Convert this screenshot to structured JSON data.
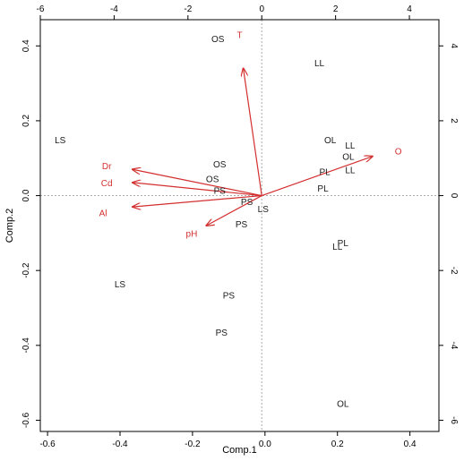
{
  "chart_data": {
    "type": "scatter",
    "subtype": "biplot",
    "title": "",
    "xlabel": "Comp.1",
    "ylabel": "Comp.2",
    "xlim": [
      -0.62,
      0.48
    ],
    "ylim": [
      -0.63,
      0.47
    ],
    "top_xlim": [
      -6,
      4.8
    ],
    "right_ylim": [
      -6.3,
      4.7
    ],
    "bottom_ticks": [
      -0.6,
      -0.4,
      -0.2,
      0.0,
      0.2,
      0.4
    ],
    "bottom_tick_labels": [
      "-0.6",
      "-0.4",
      "-0.2",
      "0.0",
      "0.2",
      "0.4"
    ],
    "left_ticks": [
      -0.6,
      -0.4,
      -0.2,
      0.0,
      0.2,
      0.4
    ],
    "left_tick_labels": [
      "-0.6",
      "-0.4",
      "-0.2",
      "0.0",
      "0.2",
      "0.4"
    ],
    "top_ticks": [
      -6,
      -4,
      -2,
      0,
      2,
      4
    ],
    "top_tick_labels": [
      "-6",
      "-4",
      "-2",
      "0",
      "2",
      "4"
    ],
    "right_ticks": [
      -6,
      -4,
      -2,
      0,
      2,
      4
    ],
    "right_tick_labels": [
      "-6",
      "-4",
      "-2",
      "0",
      "2",
      "4"
    ],
    "grid": false,
    "zero_lines": true,
    "colors": {
      "points": "#1a1a1a",
      "arrows": "#d32f2f",
      "zero_lines": "#aaaaaa",
      "axes": "#000000"
    },
    "points": [
      {
        "label": "OS",
        "x": -0.13,
        "y": 0.42
      },
      {
        "label": "LL",
        "x": 0.15,
        "y": 0.355
      },
      {
        "label": "LS",
        "x": -0.565,
        "y": 0.15
      },
      {
        "label": "OL",
        "x": 0.18,
        "y": 0.15
      },
      {
        "label": "LL",
        "x": 0.235,
        "y": 0.135
      },
      {
        "label": "OL",
        "x": 0.23,
        "y": 0.105
      },
      {
        "label": "OS",
        "x": -0.125,
        "y": 0.085
      },
      {
        "label": "LL",
        "x": 0.235,
        "y": 0.07
      },
      {
        "label": "PL",
        "x": 0.165,
        "y": 0.065
      },
      {
        "label": "OS",
        "x": -0.145,
        "y": 0.045
      },
      {
        "label": "PL",
        "x": 0.16,
        "y": 0.02
      },
      {
        "label": "PS",
        "x": -0.125,
        "y": 0.015
      },
      {
        "label": "PS",
        "x": -0.05,
        "y": -0.015
      },
      {
        "label": "LS",
        "x": -0.005,
        "y": -0.035
      },
      {
        "label": "PS",
        "x": -0.065,
        "y": -0.075
      },
      {
        "label": "LL",
        "x": 0.2,
        "y": -0.135
      },
      {
        "label": "PL",
        "x": 0.215,
        "y": -0.125
      },
      {
        "label": "LS",
        "x": -0.4,
        "y": -0.235
      },
      {
        "label": "PS",
        "x": -0.1,
        "y": -0.265
      },
      {
        "label": "PS",
        "x": -0.12,
        "y": -0.365
      },
      {
        "label": "OL",
        "x": 0.215,
        "y": -0.555
      }
    ],
    "loadings": [
      {
        "label": "T",
        "x": -0.5,
        "y": 3.4,
        "label_x": -0.6,
        "label_y": 4.3
      },
      {
        "label": "Dr",
        "x": -3.5,
        "y": 0.7,
        "label_x": -4.2,
        "label_y": 0.8
      },
      {
        "label": "Cd",
        "x": -3.5,
        "y": 0.35,
        "label_x": -4.2,
        "label_y": 0.35
      },
      {
        "label": "Al",
        "x": -3.5,
        "y": -0.3,
        "label_x": -4.3,
        "label_y": -0.45
      },
      {
        "label": "pH",
        "x": -1.5,
        "y": -0.8,
        "label_x": -1.9,
        "label_y": -1.0
      },
      {
        "label": "O",
        "x": 3.0,
        "y": 1.05,
        "label_x": 3.7,
        "label_y": 1.2
      }
    ]
  }
}
